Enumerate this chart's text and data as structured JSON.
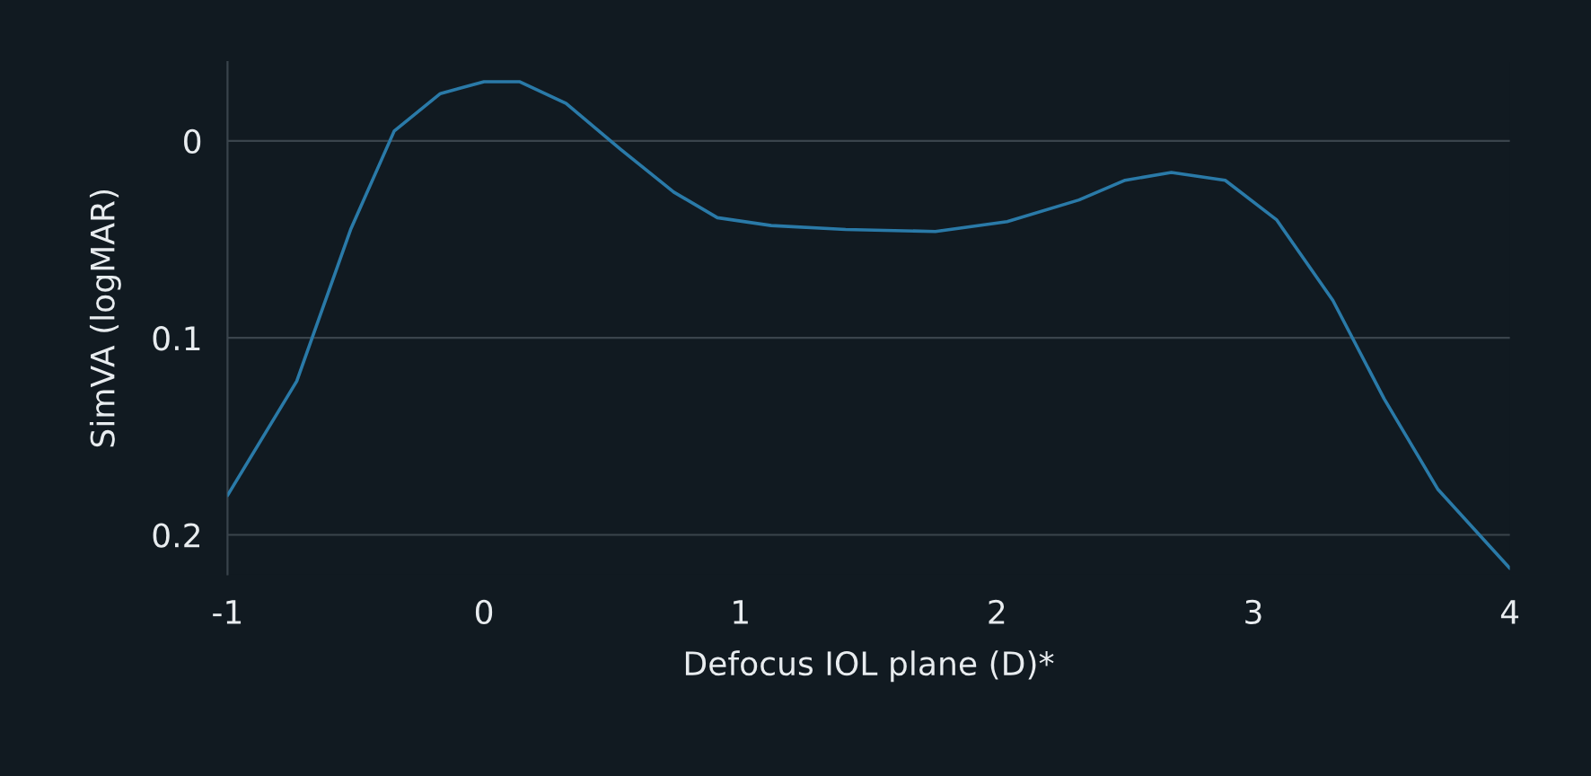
{
  "chart_data": {
    "type": "line",
    "xlabel": "Defocus IOL plane (D)*",
    "ylabel": "SimVA (logMAR)",
    "x": [
      -1,
      -0.73,
      -0.52,
      -0.35,
      -0.17,
      0.0,
      0.14,
      0.32,
      0.53,
      0.74,
      0.91,
      1.12,
      1.41,
      1.76,
      2.04,
      2.32,
      2.5,
      2.68,
      2.89,
      3.09,
      3.31,
      3.51,
      3.72,
      4.0
    ],
    "series": [
      {
        "color": "#2a7aa8",
        "values": [
          0.18,
          0.122,
          0.045,
          -0.005,
          -0.024,
          -0.03,
          -0.03,
          -0.019,
          0.004,
          0.026,
          0.039,
          0.043,
          0.045,
          0.046,
          0.041,
          0.03,
          0.02,
          0.016,
          0.02,
          0.04,
          0.081,
          0.131,
          0.177,
          0.217
        ]
      }
    ],
    "xlim": [
      -1,
      4
    ],
    "xticks": [
      -1,
      0,
      1,
      2,
      3,
      4
    ],
    "ylim": [
      0.22,
      -0.04
    ],
    "yticks": [
      0,
      0.1,
      0.2
    ],
    "grid": "y",
    "legend": false,
    "marker": "none",
    "line_style": "solid"
  }
}
